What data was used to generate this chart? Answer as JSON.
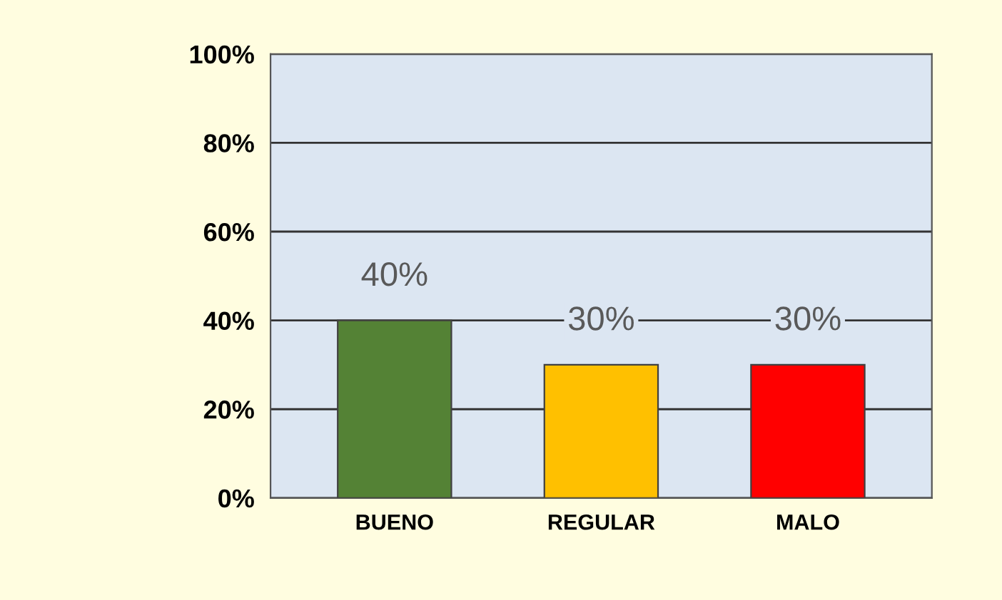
{
  "chart_data": {
    "type": "bar",
    "categories": [
      "BUENO",
      "REGULAR",
      "MALO"
    ],
    "values": [
      40,
      30,
      30
    ],
    "colors": [
      "#548235",
      "#ffc000",
      "#ff0000"
    ],
    "value_labels": [
      "40%",
      "30%",
      "30%"
    ],
    "ylim": [
      0,
      100
    ],
    "yticks": [
      {
        "value": 0,
        "label": "0%"
      },
      {
        "value": 20,
        "label": "20%"
      },
      {
        "value": 40,
        "label": "40%"
      },
      {
        "value": 60,
        "label": "60%"
      },
      {
        "value": 80,
        "label": "80%"
      },
      {
        "value": 100,
        "label": "100%"
      }
    ],
    "grid": "y"
  }
}
